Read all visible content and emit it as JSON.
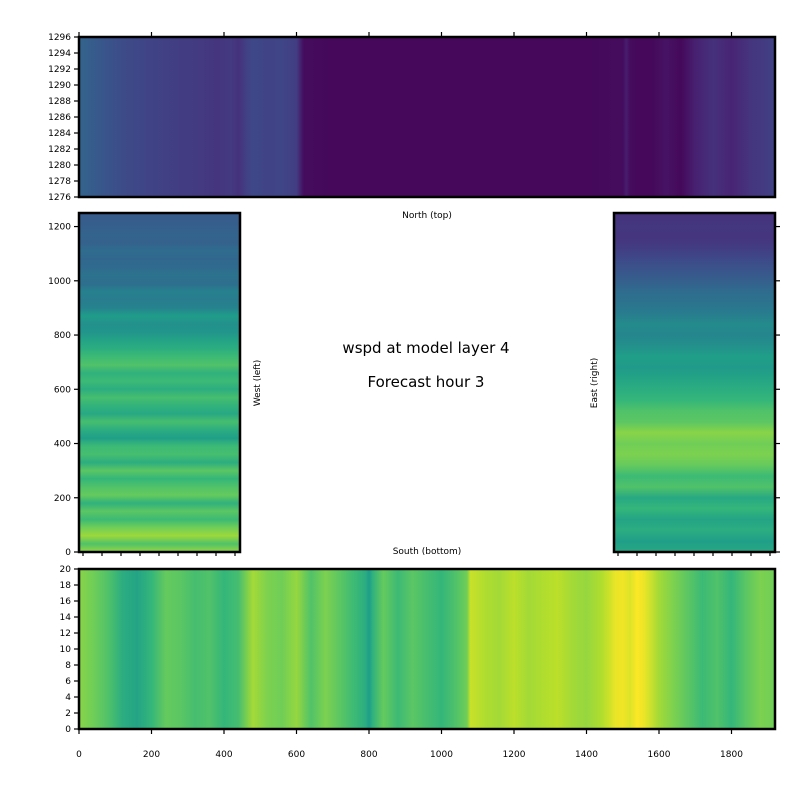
{
  "chart_data": {
    "type": "heatmap",
    "variable": "wspd",
    "title": "wspd at model layer 4",
    "subtitle": "Forecast hour 3",
    "colormap": "viridis",
    "panels": {
      "north": {
        "label": "North (top)",
        "x_ticks": [
          0,
          200,
          400,
          600,
          800,
          1000,
          1200,
          1400,
          1600,
          1800
        ],
        "y_ticks": [
          1276,
          1278,
          1280,
          1282,
          1284,
          1286,
          1288,
          1290,
          1292,
          1294,
          1296
        ],
        "xlim": [
          0,
          1920
        ],
        "ylim": [
          1276,
          1296
        ],
        "profile_x": [
          0,
          60,
          120,
          200,
          280,
          340,
          380,
          420,
          440,
          460,
          480,
          520,
          560,
          600,
          620,
          700,
          800,
          900,
          1000,
          1100,
          1200,
          1300,
          1400,
          1500,
          1510,
          1520,
          1540,
          1580,
          1620,
          1660,
          1700,
          1750,
          1800,
          1850,
          1900,
          1920
        ],
        "profile_v": [
          0.32,
          0.27,
          0.23,
          0.2,
          0.18,
          0.17,
          0.15,
          0.17,
          0.14,
          0.19,
          0.22,
          0.2,
          0.21,
          0.18,
          0.03,
          0.02,
          0.02,
          0.02,
          0.02,
          0.02,
          0.02,
          0.02,
          0.02,
          0.03,
          0.08,
          0.03,
          0.02,
          0.02,
          0.05,
          0.02,
          0.09,
          0.14,
          0.1,
          0.15,
          0.18,
          0.2
        ]
      },
      "west": {
        "label": "West (left)",
        "x_ticks": [],
        "y_ticks": [
          0,
          200,
          400,
          600,
          800,
          1000,
          1200
        ],
        "xlim": [
          0,
          445
        ],
        "ylim": [
          0,
          1250
        ],
        "profile_y": [
          0,
          30,
          60,
          90,
          120,
          150,
          180,
          210,
          240,
          270,
          300,
          330,
          360,
          390,
          420,
          450,
          480,
          510,
          540,
          570,
          600,
          630,
          660,
          690,
          720,
          750,
          780,
          810,
          840,
          870,
          900,
          930,
          960,
          990,
          1020,
          1050,
          1080,
          1110,
          1140,
          1170,
          1200,
          1230,
          1250
        ],
        "profile_v": [
          0.84,
          0.72,
          0.85,
          0.78,
          0.68,
          0.74,
          0.64,
          0.76,
          0.72,
          0.66,
          0.74,
          0.62,
          0.7,
          0.68,
          0.56,
          0.62,
          0.7,
          0.6,
          0.65,
          0.7,
          0.62,
          0.68,
          0.64,
          0.72,
          0.68,
          0.62,
          0.58,
          0.52,
          0.5,
          0.55,
          0.45,
          0.42,
          0.44,
          0.36,
          0.38,
          0.34,
          0.33,
          0.35,
          0.31,
          0.32,
          0.3,
          0.29,
          0.28
        ]
      },
      "east": {
        "label": "East (right)",
        "x_ticks": [],
        "y_ticks": [
          0,
          200,
          400,
          600,
          800,
          1000,
          1200
        ],
        "xlim": [
          0,
          445
        ],
        "ylim": [
          0,
          1250
        ],
        "profile_y": [
          0,
          40,
          80,
          120,
          160,
          200,
          240,
          280,
          320,
          360,
          400,
          440,
          480,
          520,
          560,
          600,
          640,
          680,
          720,
          760,
          800,
          840,
          880,
          920,
          960,
          1000,
          1040,
          1080,
          1120,
          1160,
          1200,
          1250
        ],
        "profile_v": [
          0.6,
          0.56,
          0.62,
          0.58,
          0.66,
          0.6,
          0.72,
          0.68,
          0.76,
          0.8,
          0.78,
          0.82,
          0.74,
          0.72,
          0.66,
          0.62,
          0.58,
          0.54,
          0.56,
          0.5,
          0.46,
          0.48,
          0.42,
          0.38,
          0.35,
          0.3,
          0.26,
          0.22,
          0.18,
          0.15,
          0.16,
          0.14
        ]
      },
      "south": {
        "label": "South (bottom)",
        "x_ticks": [
          0,
          200,
          400,
          600,
          800,
          1000,
          1200,
          1400,
          1600,
          1800
        ],
        "y_ticks": [
          0,
          2,
          4,
          6,
          8,
          10,
          12,
          14,
          16,
          18,
          20
        ],
        "xlim": [
          0,
          1920
        ],
        "ylim": [
          0,
          20
        ],
        "profile_x": [
          0,
          40,
          80,
          120,
          160,
          200,
          240,
          280,
          320,
          360,
          400,
          440,
          480,
          520,
          560,
          600,
          640,
          680,
          720,
          760,
          790,
          800,
          810,
          840,
          880,
          920,
          960,
          1000,
          1040,
          1070,
          1080,
          1120,
          1160,
          1200,
          1240,
          1280,
          1320,
          1360,
          1400,
          1440,
          1460,
          1480,
          1500,
          1520,
          1540,
          1560,
          1600,
          1640,
          1680,
          1720,
          1760,
          1800,
          1840,
          1880,
          1920
        ],
        "profile_v": [
          0.82,
          0.78,
          0.72,
          0.62,
          0.58,
          0.66,
          0.76,
          0.74,
          0.7,
          0.72,
          0.66,
          0.7,
          0.86,
          0.8,
          0.78,
          0.84,
          0.72,
          0.8,
          0.74,
          0.68,
          0.62,
          0.55,
          0.64,
          0.76,
          0.68,
          0.74,
          0.7,
          0.66,
          0.72,
          0.78,
          0.92,
          0.88,
          0.86,
          0.9,
          0.86,
          0.88,
          0.9,
          0.86,
          0.84,
          0.88,
          0.92,
          0.97,
          0.98,
          0.95,
          1.0,
          0.97,
          0.86,
          0.8,
          0.74,
          0.68,
          0.72,
          0.66,
          0.74,
          0.8,
          0.78
        ]
      }
    }
  }
}
